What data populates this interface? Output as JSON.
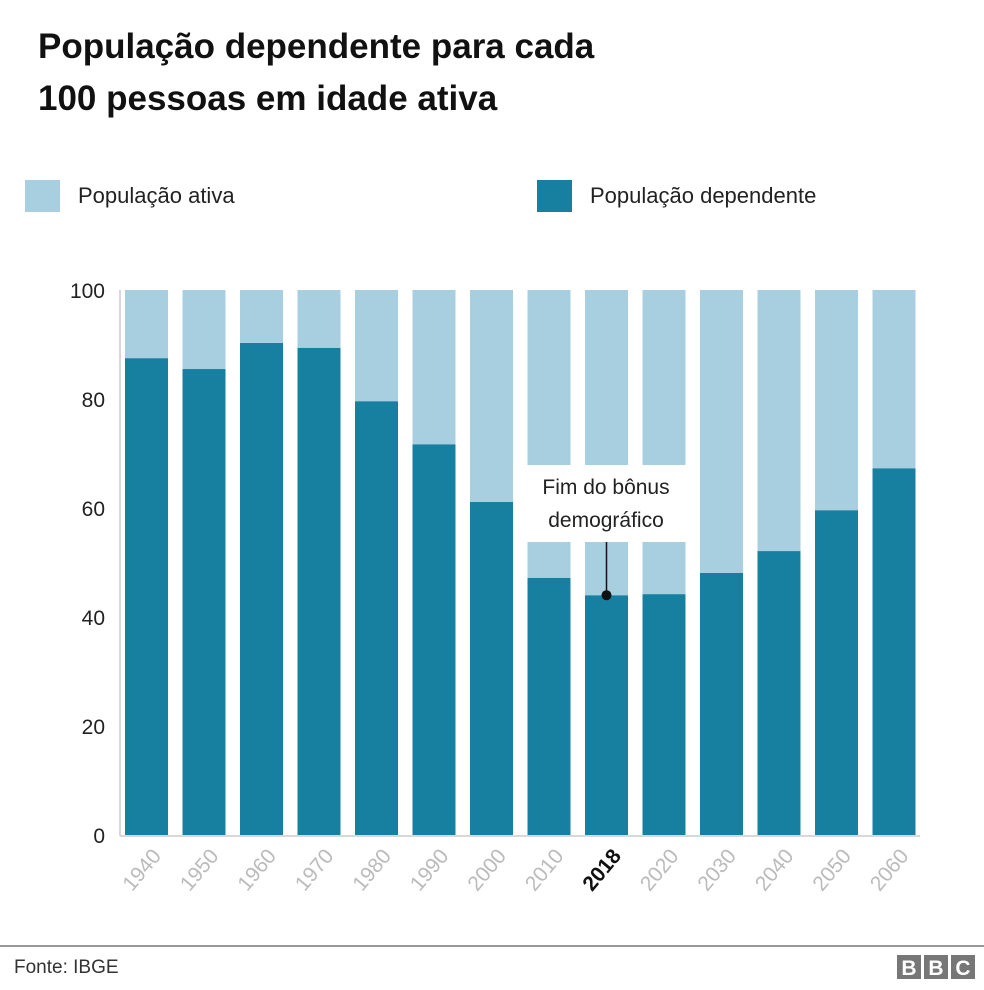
{
  "chart_data": {
    "type": "bar",
    "stacked": true,
    "title": "População dependente para cada 100 pessoas em idade ativa",
    "title_lines": [
      "População dependente para cada",
      "100 pessoas em idade ativa"
    ],
    "categories": [
      "1940",
      "1950",
      "1960",
      "1970",
      "1980",
      "1990",
      "2000",
      "2010",
      "2018",
      "2020",
      "2030",
      "2040",
      "2050",
      "2060"
    ],
    "highlighted_category": "2018",
    "series": [
      {
        "name": "População dependente",
        "color": "#1780a1",
        "values": [
          87.5,
          85.5,
          90.3,
          89.4,
          79.6,
          71.7,
          61.1,
          47.2,
          44.0,
          44.2,
          48.1,
          52.1,
          59.6,
          67.3
        ]
      },
      {
        "name": "População ativa",
        "color": "#a7cfdf",
        "values": [
          12.5,
          14.5,
          9.7,
          10.6,
          20.4,
          28.3,
          38.9,
          52.8,
          56.0,
          55.8,
          51.9,
          47.9,
          40.4,
          32.7
        ]
      }
    ],
    "ylim": [
      0,
      100
    ],
    "yticks": [
      "0",
      "20",
      "40",
      "60",
      "80",
      "100"
    ],
    "grid": false,
    "legend_position": "top",
    "legend": [
      {
        "label": "População ativa",
        "color": "#a7cfdf"
      },
      {
        "label": "População dependente",
        "color": "#1780a1"
      }
    ],
    "annotation": {
      "text_lines": [
        "Fim do bônus",
        "demográfico"
      ],
      "category": "2018"
    },
    "source": "Fonte: IBGE",
    "logo": "BBC"
  }
}
